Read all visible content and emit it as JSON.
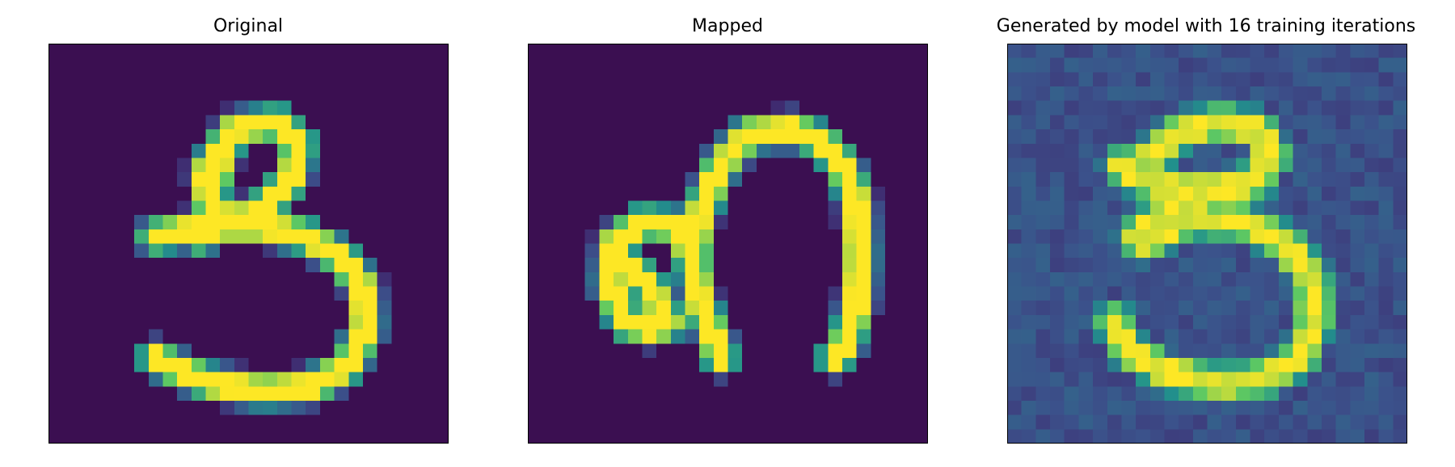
{
  "panels": [
    {
      "title": "Original",
      "style": "clean"
    },
    {
      "title": "Mapped",
      "style": "clean"
    },
    {
      "title": "Generated by model with 16 training iterations",
      "style": "noisy"
    }
  ],
  "colormap": {
    "name": "viridis",
    "background_clean": "#3b0f51",
    "background_noisy": "#3f4d8a",
    "colors": [
      "#440154",
      "#3b528b",
      "#21918c",
      "#5ec962",
      "#fde725"
    ]
  }
}
